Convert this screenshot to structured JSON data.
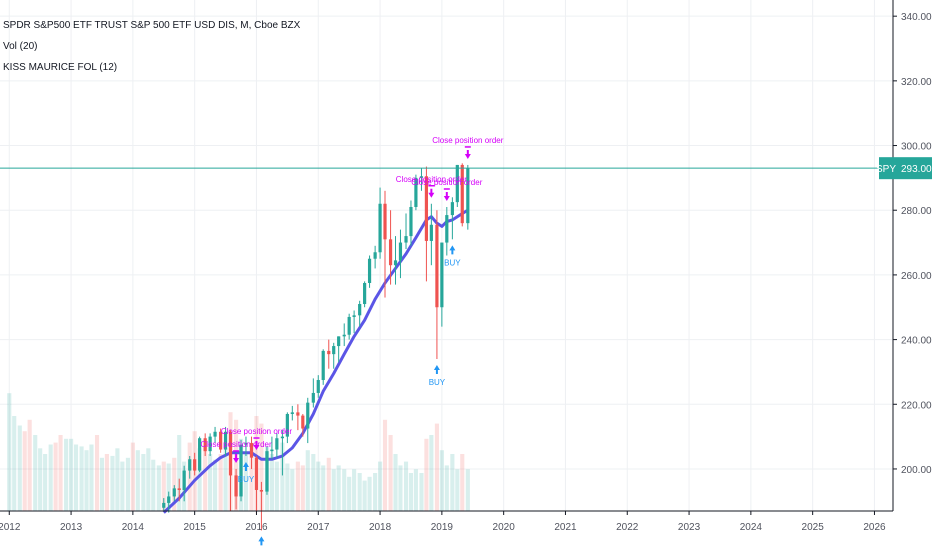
{
  "header": {
    "title": "SPDR S&P500 ETF TRUST S&P 500 ETF USD DIS, M, Cboe BZX",
    "volume_label": "Vol (20)",
    "indicator_label": "KISS MAURICE FOL (12)"
  },
  "colors": {
    "up": "#26a69a",
    "down": "#ef5350",
    "ma": "#5b55e6",
    "buy": "#2196f3",
    "close": "#d500f9",
    "price_line": "#26a69a",
    "price_badge": "#26a69a"
  },
  "price_badge": {
    "symbol": "SPY",
    "value": "293.00"
  },
  "chart_data": {
    "type": "candlestick",
    "title": "SPDR S&P500 ETF TRUST S&P 500 ETF USD DIS, M, Cboe BZX",
    "xlim": [
      2011.85,
      2026.3
    ],
    "ylim": [
      187,
      345
    ],
    "x_ticks": [
      "2012",
      "2013",
      "2014",
      "2015",
      "2016",
      "2017",
      "2018",
      "2019",
      "2020",
      "2021",
      "2022",
      "2023",
      "2024",
      "2025",
      "2026"
    ],
    "y_ticks": [
      "200.00",
      "220.00",
      "240.00",
      "260.00",
      "280.00",
      "300.00",
      "320.00",
      "340.00"
    ],
    "last_price": 293.0,
    "candles": [
      {
        "t": 2014.5,
        "o": 188.0,
        "h": 191.0,
        "l": 187.0,
        "c": 189.5
      },
      {
        "t": 2014.58,
        "o": 189.5,
        "h": 193.0,
        "l": 186.5,
        "c": 191.5
      },
      {
        "t": 2014.67,
        "o": 191.5,
        "h": 195.0,
        "l": 190.0,
        "c": 194.0
      },
      {
        "t": 2014.75,
        "o": 194.0,
        "h": 197.0,
        "l": 190.0,
        "c": 193.5
      },
      {
        "t": 2014.83,
        "o": 193.5,
        "h": 201.0,
        "l": 190.0,
        "c": 199.5
      },
      {
        "t": 2014.92,
        "o": 199.5,
        "h": 204.0,
        "l": 197.0,
        "c": 203.0
      },
      {
        "t": 2015.0,
        "o": 203.0,
        "h": 205.0,
        "l": 198.0,
        "c": 199.5
      },
      {
        "t": 2015.08,
        "o": 199.5,
        "h": 210.0,
        "l": 199.0,
        "c": 209.5
      },
      {
        "t": 2015.17,
        "o": 209.5,
        "h": 211.0,
        "l": 204.0,
        "c": 205.5
      },
      {
        "t": 2015.25,
        "o": 205.5,
        "h": 211.0,
        "l": 204.0,
        "c": 210.0
      },
      {
        "t": 2015.33,
        "o": 210.0,
        "h": 213.0,
        "l": 208.0,
        "c": 211.5
      },
      {
        "t": 2015.42,
        "o": 211.5,
        "h": 212.5,
        "l": 205.0,
        "c": 206.0
      },
      {
        "t": 2015.5,
        "o": 206.0,
        "h": 213.0,
        "l": 204.0,
        "c": 211.5
      },
      {
        "t": 2015.58,
        "o": 211.5,
        "h": 212.0,
        "l": 187.0,
        "c": 198.0
      },
      {
        "t": 2015.67,
        "o": 198.0,
        "h": 200.0,
        "l": 187.5,
        "c": 191.5
      },
      {
        "t": 2015.75,
        "o": 191.5,
        "h": 209.0,
        "l": 190.0,
        "c": 207.5
      },
      {
        "t": 2015.83,
        "o": 207.5,
        "h": 210.0,
        "l": 204.0,
        "c": 208.0
      },
      {
        "t": 2015.92,
        "o": 208.0,
        "h": 210.0,
        "l": 200.0,
        "c": 203.5
      },
      {
        "t": 2016.0,
        "o": 203.5,
        "h": 204.0,
        "l": 186.0,
        "c": 193.5
      },
      {
        "t": 2016.08,
        "o": 193.5,
        "h": 196.0,
        "l": 181.0,
        "c": 193.0
      },
      {
        "t": 2016.17,
        "o": 193.0,
        "h": 207.0,
        "l": 192.0,
        "c": 205.5
      },
      {
        "t": 2016.25,
        "o": 205.5,
        "h": 210.0,
        "l": 203.0,
        "c": 206.0
      },
      {
        "t": 2016.33,
        "o": 206.0,
        "h": 211.0,
        "l": 203.5,
        "c": 209.5
      },
      {
        "t": 2016.42,
        "o": 209.5,
        "h": 212.0,
        "l": 198.0,
        "c": 210.0
      },
      {
        "t": 2016.5,
        "o": 210.0,
        "h": 217.5,
        "l": 208.0,
        "c": 217.0
      },
      {
        "t": 2016.58,
        "o": 217.0,
        "h": 219.5,
        "l": 215.0,
        "c": 217.5
      },
      {
        "t": 2016.67,
        "o": 217.5,
        "h": 220.0,
        "l": 212.0,
        "c": 216.5
      },
      {
        "t": 2016.75,
        "o": 216.5,
        "h": 217.0,
        "l": 210.0,
        "c": 212.5
      },
      {
        "t": 2016.83,
        "o": 212.5,
        "h": 222.0,
        "l": 208.0,
        "c": 220.5
      },
      {
        "t": 2016.92,
        "o": 220.5,
        "h": 228.0,
        "l": 219.0,
        "c": 223.5
      },
      {
        "t": 2017.0,
        "o": 223.5,
        "h": 229.0,
        "l": 222.0,
        "c": 227.5
      },
      {
        "t": 2017.08,
        "o": 227.5,
        "h": 237.0,
        "l": 226.0,
        "c": 236.5
      },
      {
        "t": 2017.17,
        "o": 236.5,
        "h": 240.0,
        "l": 231.0,
        "c": 235.5
      },
      {
        "t": 2017.25,
        "o": 235.5,
        "h": 239.0,
        "l": 231.0,
        "c": 238.0
      },
      {
        "t": 2017.33,
        "o": 238.0,
        "h": 241.0,
        "l": 233.0,
        "c": 241.0
      },
      {
        "t": 2017.42,
        "o": 241.0,
        "h": 245.0,
        "l": 238.0,
        "c": 241.5
      },
      {
        "t": 2017.5,
        "o": 241.5,
        "h": 248.0,
        "l": 240.0,
        "c": 247.0
      },
      {
        "t": 2017.58,
        "o": 247.0,
        "h": 249.0,
        "l": 242.0,
        "c": 247.5
      },
      {
        "t": 2017.67,
        "o": 247.5,
        "h": 252.0,
        "l": 244.0,
        "c": 251.0
      },
      {
        "t": 2017.75,
        "o": 251.0,
        "h": 258.0,
        "l": 250.0,
        "c": 257.5
      },
      {
        "t": 2017.83,
        "o": 257.5,
        "h": 266.0,
        "l": 256.0,
        "c": 265.0
      },
      {
        "t": 2017.92,
        "o": 265.0,
        "h": 269.0,
        "l": 262.0,
        "c": 267.0
      },
      {
        "t": 2018.0,
        "o": 267.0,
        "h": 287.0,
        "l": 265.0,
        "c": 282.0
      },
      {
        "t": 2018.08,
        "o": 282.0,
        "h": 286.0,
        "l": 253.0,
        "c": 271.0
      },
      {
        "t": 2018.17,
        "o": 271.0,
        "h": 280.0,
        "l": 257.0,
        "c": 263.0
      },
      {
        "t": 2018.25,
        "o": 263.0,
        "h": 272.0,
        "l": 257.0,
        "c": 264.5
      },
      {
        "t": 2018.33,
        "o": 264.5,
        "h": 274.0,
        "l": 259.0,
        "c": 270.0
      },
      {
        "t": 2018.42,
        "o": 270.0,
        "h": 279.0,
        "l": 268.0,
        "c": 272.0
      },
      {
        "t": 2018.5,
        "o": 272.0,
        "h": 283.0,
        "l": 269.0,
        "c": 281.0
      },
      {
        "t": 2018.58,
        "o": 281.0,
        "h": 291.0,
        "l": 280.0,
        "c": 290.0
      },
      {
        "t": 2018.67,
        "o": 290.0,
        "h": 293.0,
        "l": 286.0,
        "c": 290.5
      },
      {
        "t": 2018.75,
        "o": 290.5,
        "h": 293.5,
        "l": 258.0,
        "c": 270.5
      },
      {
        "t": 2018.83,
        "o": 270.5,
        "h": 282.0,
        "l": 263.0,
        "c": 275.5
      },
      {
        "t": 2018.92,
        "o": 275.5,
        "h": 280.0,
        "l": 234.0,
        "c": 250.0
      },
      {
        "t": 2019.0,
        "o": 250.0,
        "h": 270.0,
        "l": 244.0,
        "c": 270.0
      },
      {
        "t": 2019.08,
        "o": 270.0,
        "h": 281.0,
        "l": 266.0,
        "c": 278.5
      },
      {
        "t": 2019.17,
        "o": 278.5,
        "h": 284.0,
        "l": 271.0,
        "c": 282.5
      },
      {
        "t": 2019.25,
        "o": 282.5,
        "h": 294.0,
        "l": 281.0,
        "c": 294.0
      },
      {
        "t": 2019.33,
        "o": 294.0,
        "h": 294.5,
        "l": 275.0,
        "c": 276.0
      },
      {
        "t": 2019.42,
        "o": 276.0,
        "h": 294.0,
        "l": 274.0,
        "c": 293.0
      }
    ],
    "ma_line": {
      "name": "KISS MAURICE FOL (12)",
      "x": [
        2014.5,
        2014.75,
        2015.0,
        2015.25,
        2015.42,
        2015.58,
        2015.75,
        2015.92,
        2016.08,
        2016.25,
        2016.42,
        2016.58,
        2016.75,
        2016.92,
        2017.08,
        2017.25,
        2017.42,
        2017.58,
        2017.75,
        2017.92,
        2018.08,
        2018.25,
        2018.42,
        2018.58,
        2018.75,
        2018.83,
        2018.92,
        2019.0,
        2019.08,
        2019.17,
        2019.25,
        2019.33,
        2019.42
      ],
      "y": [
        186.5,
        191.0,
        196.5,
        201.0,
        203.5,
        205.0,
        205.0,
        205.0,
        203.0,
        203.0,
        204.0,
        206.5,
        211.0,
        217.0,
        224.0,
        229.5,
        235.5,
        241.0,
        246.0,
        252.5,
        257.5,
        262.0,
        266.5,
        271.5,
        277.0,
        278.0,
        276.0,
        275.0,
        276.5,
        277.0,
        278.0,
        279.0,
        280.0
      ]
    },
    "signals": [
      {
        "type": "close",
        "t": 2015.67,
        "label": "Close position order"
      },
      {
        "type": "close",
        "t": 2016.0,
        "label": "Close position order"
      },
      {
        "type": "buy",
        "t": 2015.83,
        "label": "BUY"
      },
      {
        "type": "buy",
        "t": 2016.08,
        "label": "BUY"
      },
      {
        "type": "close",
        "t": 2018.83,
        "label": "Close position order"
      },
      {
        "type": "close",
        "t": 2019.08,
        "label": "Close position order"
      },
      {
        "type": "buy",
        "t": 2018.92,
        "label": "BUY"
      },
      {
        "type": "buy",
        "t": 2019.17,
        "label": "BUY"
      },
      {
        "type": "close",
        "t": 2019.42,
        "label": "Close position order"
      }
    ],
    "volume_scale": 1.0,
    "volume": [
      {
        "t": 2012.0,
        "v": 0.62,
        "up": true
      },
      {
        "t": 2012.08,
        "v": 0.5,
        "up": true
      },
      {
        "t": 2012.17,
        "v": 0.45,
        "up": true
      },
      {
        "t": 2012.25,
        "v": 0.42,
        "up": false
      },
      {
        "t": 2012.33,
        "v": 0.48,
        "up": false
      },
      {
        "t": 2012.42,
        "v": 0.4,
        "up": true
      },
      {
        "t": 2012.5,
        "v": 0.33,
        "up": true
      },
      {
        "t": 2012.58,
        "v": 0.3,
        "up": true
      },
      {
        "t": 2012.67,
        "v": 0.35,
        "up": true
      },
      {
        "t": 2012.75,
        "v": 0.36,
        "up": false
      },
      {
        "t": 2012.83,
        "v": 0.4,
        "up": false
      },
      {
        "t": 2012.92,
        "v": 0.38,
        "up": true
      },
      {
        "t": 2013.0,
        "v": 0.38,
        "up": true
      },
      {
        "t": 2013.08,
        "v": 0.35,
        "up": true
      },
      {
        "t": 2013.17,
        "v": 0.34,
        "up": true
      },
      {
        "t": 2013.25,
        "v": 0.32,
        "up": true
      },
      {
        "t": 2013.33,
        "v": 0.35,
        "up": true
      },
      {
        "t": 2013.42,
        "v": 0.4,
        "up": false
      },
      {
        "t": 2013.5,
        "v": 0.28,
        "up": true
      },
      {
        "t": 2013.58,
        "v": 0.3,
        "up": false
      },
      {
        "t": 2013.67,
        "v": 0.29,
        "up": true
      },
      {
        "t": 2013.75,
        "v": 0.33,
        "up": true
      },
      {
        "t": 2013.83,
        "v": 0.26,
        "up": true
      },
      {
        "t": 2013.92,
        "v": 0.28,
        "up": true
      },
      {
        "t": 2014.0,
        "v": 0.36,
        "up": false
      },
      {
        "t": 2014.08,
        "v": 0.32,
        "up": true
      },
      {
        "t": 2014.17,
        "v": 0.3,
        "up": true
      },
      {
        "t": 2014.25,
        "v": 0.33,
        "up": true
      },
      {
        "t": 2014.33,
        "v": 0.27,
        "up": true
      },
      {
        "t": 2014.42,
        "v": 0.24,
        "up": true
      },
      {
        "t": 2014.5,
        "v": 0.26,
        "up": false
      },
      {
        "t": 2014.58,
        "v": 0.25,
        "up": true
      },
      {
        "t": 2014.67,
        "v": 0.28,
        "up": false
      },
      {
        "t": 2014.75,
        "v": 0.4,
        "up": true
      },
      {
        "t": 2014.83,
        "v": 0.26,
        "up": true
      },
      {
        "t": 2014.92,
        "v": 0.36,
        "up": false
      },
      {
        "t": 2015.0,
        "v": 0.42,
        "up": false
      },
      {
        "t": 2015.08,
        "v": 0.33,
        "up": true
      },
      {
        "t": 2015.17,
        "v": 0.34,
        "up": false
      },
      {
        "t": 2015.25,
        "v": 0.3,
        "up": true
      },
      {
        "t": 2015.33,
        "v": 0.27,
        "up": true
      },
      {
        "t": 2015.42,
        "v": 0.3,
        "up": false
      },
      {
        "t": 2015.5,
        "v": 0.33,
        "up": true
      },
      {
        "t": 2015.58,
        "v": 0.52,
        "up": false
      },
      {
        "t": 2015.67,
        "v": 0.48,
        "up": false
      },
      {
        "t": 2015.75,
        "v": 0.38,
        "up": true
      },
      {
        "t": 2015.83,
        "v": 0.3,
        "up": true
      },
      {
        "t": 2015.92,
        "v": 0.36,
        "up": false
      },
      {
        "t": 2016.0,
        "v": 0.5,
        "up": false
      },
      {
        "t": 2016.08,
        "v": 0.46,
        "up": false
      },
      {
        "t": 2016.17,
        "v": 0.34,
        "up": true
      },
      {
        "t": 2016.25,
        "v": 0.3,
        "up": true
      },
      {
        "t": 2016.33,
        "v": 0.26,
        "up": true
      },
      {
        "t": 2016.42,
        "v": 0.36,
        "up": true
      },
      {
        "t": 2016.5,
        "v": 0.25,
        "up": true
      },
      {
        "t": 2016.58,
        "v": 0.22,
        "up": true
      },
      {
        "t": 2016.67,
        "v": 0.26,
        "up": false
      },
      {
        "t": 2016.75,
        "v": 0.24,
        "up": false
      },
      {
        "t": 2016.83,
        "v": 0.32,
        "up": true
      },
      {
        "t": 2016.92,
        "v": 0.3,
        "up": true
      },
      {
        "t": 2017.0,
        "v": 0.26,
        "up": true
      },
      {
        "t": 2017.08,
        "v": 0.24,
        "up": true
      },
      {
        "t": 2017.17,
        "v": 0.28,
        "up": false
      },
      {
        "t": 2017.25,
        "v": 0.22,
        "up": true
      },
      {
        "t": 2017.33,
        "v": 0.24,
        "up": true
      },
      {
        "t": 2017.42,
        "v": 0.22,
        "up": true
      },
      {
        "t": 2017.5,
        "v": 0.18,
        "up": true
      },
      {
        "t": 2017.58,
        "v": 0.22,
        "up": true
      },
      {
        "t": 2017.67,
        "v": 0.2,
        "up": true
      },
      {
        "t": 2017.75,
        "v": 0.16,
        "up": true
      },
      {
        "t": 2017.83,
        "v": 0.18,
        "up": true
      },
      {
        "t": 2017.92,
        "v": 0.2,
        "up": true
      },
      {
        "t": 2018.0,
        "v": 0.26,
        "up": true
      },
      {
        "t": 2018.08,
        "v": 0.48,
        "up": false
      },
      {
        "t": 2018.17,
        "v": 0.4,
        "up": false
      },
      {
        "t": 2018.25,
        "v": 0.3,
        "up": true
      },
      {
        "t": 2018.33,
        "v": 0.24,
        "up": true
      },
      {
        "t": 2018.42,
        "v": 0.26,
        "up": true
      },
      {
        "t": 2018.5,
        "v": 0.2,
        "up": true
      },
      {
        "t": 2018.58,
        "v": 0.22,
        "up": true
      },
      {
        "t": 2018.67,
        "v": 0.2,
        "up": true
      },
      {
        "t": 2018.75,
        "v": 0.38,
        "up": false
      },
      {
        "t": 2018.83,
        "v": 0.4,
        "up": true
      },
      {
        "t": 2018.92,
        "v": 0.46,
        "up": false
      },
      {
        "t": 2019.0,
        "v": 0.32,
        "up": true
      },
      {
        "t": 2019.08,
        "v": 0.24,
        "up": true
      },
      {
        "t": 2019.17,
        "v": 0.3,
        "up": true
      },
      {
        "t": 2019.25,
        "v": 0.22,
        "up": true
      },
      {
        "t": 2019.33,
        "v": 0.3,
        "up": false
      },
      {
        "t": 2019.42,
        "v": 0.22,
        "up": true
      }
    ]
  }
}
